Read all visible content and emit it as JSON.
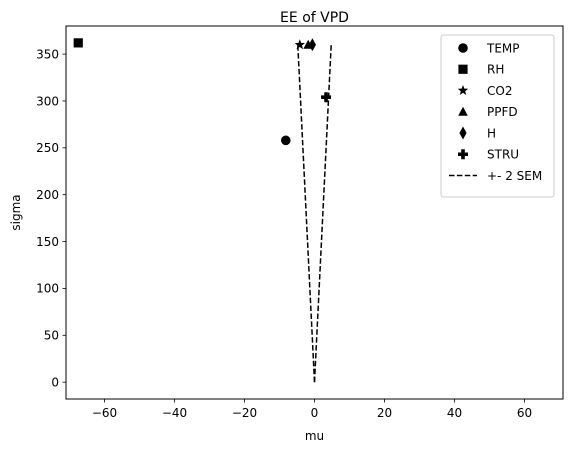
{
  "chart_data": {
    "type": "scatter",
    "title": "EE of VPD",
    "xlabel": "mu",
    "ylabel": "sigma",
    "xlim": [
      -71,
      71
    ],
    "ylim": [
      -18,
      380
    ],
    "xticks": [
      -60,
      -40,
      -20,
      0,
      20,
      40,
      60
    ],
    "yticks": [
      0,
      50,
      100,
      150,
      200,
      250,
      300,
      350
    ],
    "grid": false,
    "legend_position": "upper right",
    "series": [
      {
        "name": "TEMP",
        "marker": "circle",
        "x": [
          -8.2
        ],
        "y": [
          258
        ]
      },
      {
        "name": "RH",
        "marker": "square",
        "x": [
          -67.5
        ],
        "y": [
          362
        ]
      },
      {
        "name": "CO2",
        "marker": "star",
        "x": [
          -4.2
        ],
        "y": [
          360
        ]
      },
      {
        "name": "PPFD",
        "marker": "triangle",
        "x": [
          -1.8
        ],
        "y": [
          360
        ]
      },
      {
        "name": "H",
        "marker": "diamond",
        "x": [
          -0.6
        ],
        "y": [
          360
        ]
      },
      {
        "name": "STRU",
        "marker": "plus",
        "x": [
          3.3
        ],
        "y": [
          304
        ]
      }
    ],
    "sem_band": {
      "name": "+- 2 SEM",
      "style": "dashed",
      "lines": [
        {
          "x": [
            0,
            -4.8
          ],
          "y": [
            0,
            362
          ]
        },
        {
          "x": [
            0,
            4.8
          ],
          "y": [
            0,
            362
          ]
        }
      ]
    }
  }
}
